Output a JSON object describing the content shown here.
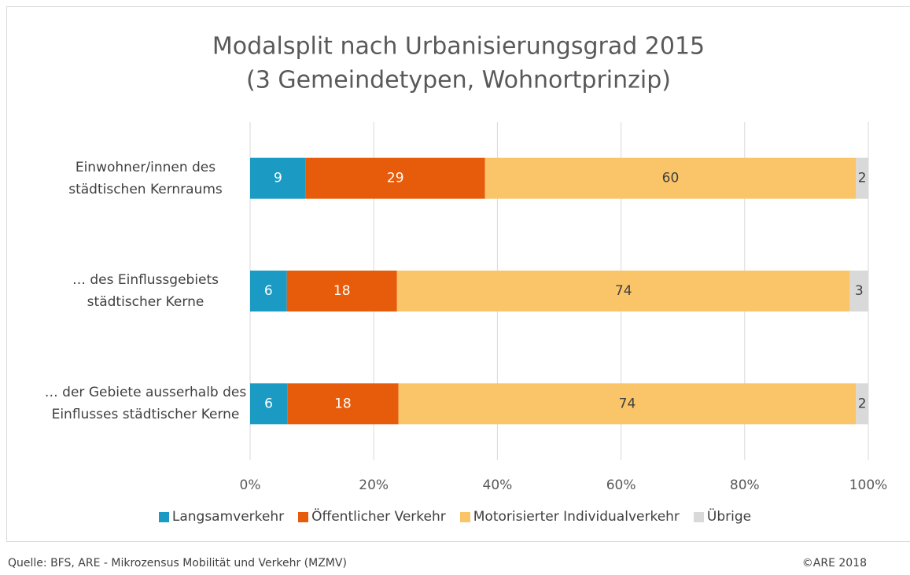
{
  "chart_data": {
    "type": "bar",
    "orientation": "horizontal",
    "stacked": "percent",
    "title": "Modalsplit nach Urbanisierungsgrad 2015",
    "subtitle": "(3 Gemeindetypen, Wohnortprinzip)",
    "categories": [
      "Einwohner/innen des städtischen Kernraums",
      "… des Einflussgebiets städtischer Kerne",
      "… der Gebiete ausserhalb des Einflusses städtischer Kerne"
    ],
    "series": [
      {
        "name": "Langsamverkehr",
        "color": "#1b9ac4",
        "values": [
          9,
          6,
          6
        ]
      },
      {
        "name": "Öffentlicher Verkehr",
        "color": "#e65c0b",
        "values": [
          29,
          18,
          18
        ]
      },
      {
        "name": "Motorisierter Individualverkehr",
        "color": "#fac568",
        "values": [
          60,
          74,
          74
        ]
      },
      {
        "name": "Übrige",
        "color": "#d9d9d9",
        "values": [
          2,
          3,
          2
        ]
      }
    ],
    "xlim": [
      0,
      100
    ],
    "xticks": [
      {
        "value": 0,
        "label": "0%"
      },
      {
        "value": 20,
        "label": "20%"
      },
      {
        "value": 40,
        "label": "40%"
      },
      {
        "value": 60,
        "label": "60%"
      },
      {
        "value": 80,
        "label": "80%"
      },
      {
        "value": 100,
        "label": "100%"
      }
    ],
    "grid": true,
    "legend": "bottom",
    "source": "Quelle: BFS, ARE - Mikrozensus Mobilität und Verkehr (MZMV)",
    "copyright": "©ARE 2018"
  }
}
